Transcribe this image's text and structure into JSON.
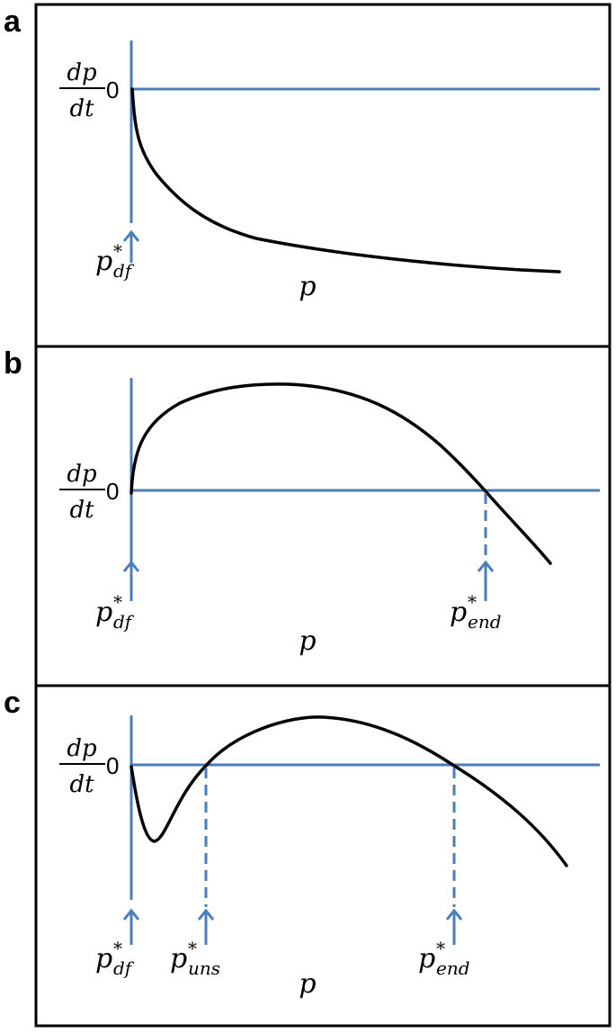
{
  "panels": [
    {
      "letter": "a",
      "y_label": {
        "numerator": "dp",
        "denominator": "dt"
      },
      "zero": "0",
      "x_label": "p",
      "markers": [
        {
          "symbol": "p",
          "superscript": "*",
          "subscript": "df"
        }
      ]
    },
    {
      "letter": "b",
      "y_label": {
        "numerator": "dp",
        "denominator": "dt"
      },
      "zero": "0",
      "x_label": "p",
      "markers": [
        {
          "symbol": "p",
          "superscript": "*",
          "subscript": "df"
        },
        {
          "symbol": "p",
          "superscript": "*",
          "subscript": "end"
        }
      ]
    },
    {
      "letter": "c",
      "y_label": {
        "numerator": "dp",
        "denominator": "dt"
      },
      "zero": "0",
      "x_label": "p",
      "markers": [
        {
          "symbol": "p",
          "superscript": "*",
          "subscript": "df"
        },
        {
          "symbol": "p",
          "superscript": "*",
          "subscript": "uns"
        },
        {
          "symbol": "p",
          "superscript": "*",
          "subscript": "end"
        }
      ]
    }
  ]
}
